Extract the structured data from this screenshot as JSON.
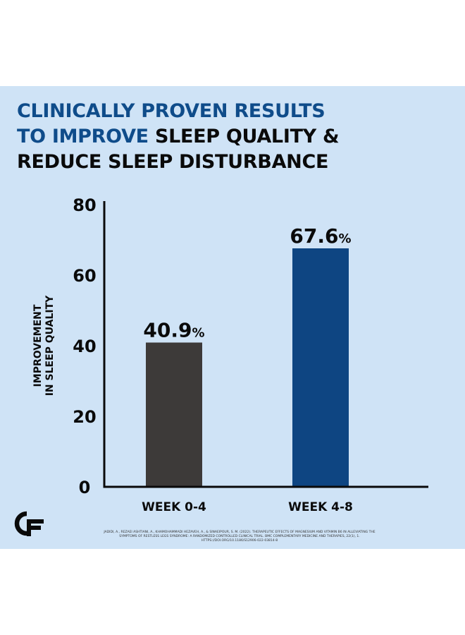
{
  "headline": {
    "line1": "CLINICALLY PROVEN RESULTS",
    "line2_blue": "TO IMPROVE",
    "line2_black": " SLEEP QUALITY &",
    "line3": "REDUCE SLEEP DISTURBANCE"
  },
  "citation": "JADIDI, A., REZAEI ASHTIANI, A., KHAMOHAMMADI HEZAVEH, A., & SINAEIPOUR, S. M. (2022). THERAPEUTIC EFFECTS OF MAGNESIUM AND VITAMIN B6 IN ALLEVIATING THE SYMPTOMS OF RESTLESS LEGS SYNDROME: A RANDOMIZED CONTROLLED CLINICAL TRIAL. BMC COMPLEMENTARY MEDICINE AND THERAPIES, 22(1), 1. HTTPS://DOI.ORG/10.1186/S12906-022-03814-8",
  "logo_icon": "cf-logo-icon",
  "colors": {
    "background": "#cfe3f6",
    "title_blue": "#0f4c8a",
    "bar_week_0_4": "#3d3a39",
    "bar_week_4_8": "#0e4582",
    "axis": "#0a0a0a"
  },
  "chart_data": {
    "type": "bar",
    "categories": [
      "WEEK 0-4",
      "WEEK 4-8"
    ],
    "values": [
      40.9,
      67.6
    ],
    "data_labels": [
      "40.9",
      "67.6"
    ],
    "data_label_unit": "%",
    "ylabel_line1": "IMPROVEMENT",
    "ylabel_line2": "IN SLEEP QUALITY",
    "xlabel": "",
    "ylim": [
      0,
      80
    ],
    "yticks": [
      0,
      20,
      40,
      60,
      80
    ],
    "grid": false,
    "legend": "none"
  }
}
